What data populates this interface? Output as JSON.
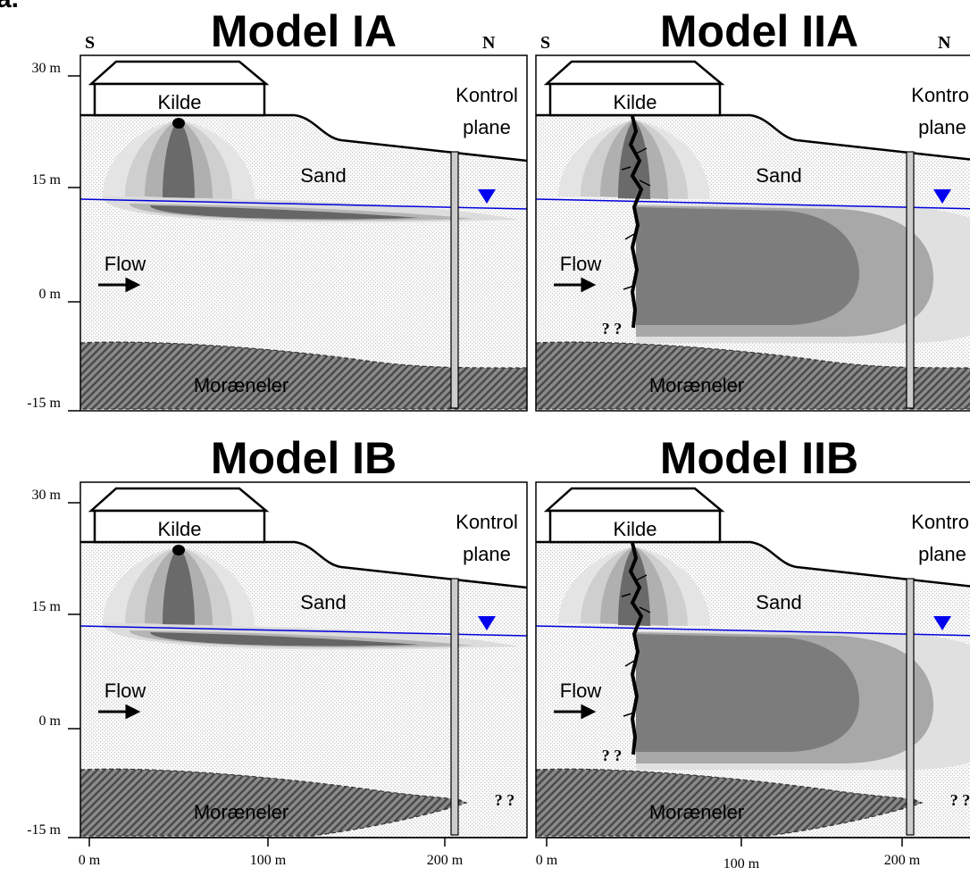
{
  "figure_label": "a.",
  "panels": [
    {
      "title": "Model IA",
      "south": "S",
      "north": "N",
      "source": "Kilde",
      "control_plane": [
        "Kontrol",
        "plane"
      ],
      "soil": "Sand",
      "flow": "Flow",
      "clay": "Moræneler"
    },
    {
      "title": "Model IIA",
      "south": "S",
      "north": "N",
      "source": "Kilde",
      "control_plane": [
        "Kontrol",
        "plane"
      ],
      "soil": "Sand",
      "flow": "Flow",
      "clay": "Moræneler",
      "fracture_unknown": "? ?"
    },
    {
      "title": "Model IB",
      "source": "Kilde",
      "control_plane": [
        "Kontrol",
        "plane"
      ],
      "soil": "Sand",
      "flow": "Flow",
      "clay": "Moræneler",
      "clay_unknown": "? ?"
    },
    {
      "title": "Model IIB",
      "source": "Kilde",
      "control_plane": [
        "Kontrol",
        "plane"
      ],
      "soil": "Sand",
      "flow": "Flow",
      "clay": "Moræneler",
      "fracture_unknown": "? ?",
      "clay_unknown": "? ?"
    }
  ],
  "y_axis_top": [
    "30 m",
    "15 m",
    "0 m",
    "-15 m"
  ],
  "y_axis_bottom": [
    "30 m",
    "15 m",
    "0 m",
    "-15 m"
  ],
  "x_axis_left": [
    "0 m",
    "100 m",
    "200 m"
  ],
  "x_axis_right": [
    "0 m",
    "100 m",
    "200 m"
  ]
}
